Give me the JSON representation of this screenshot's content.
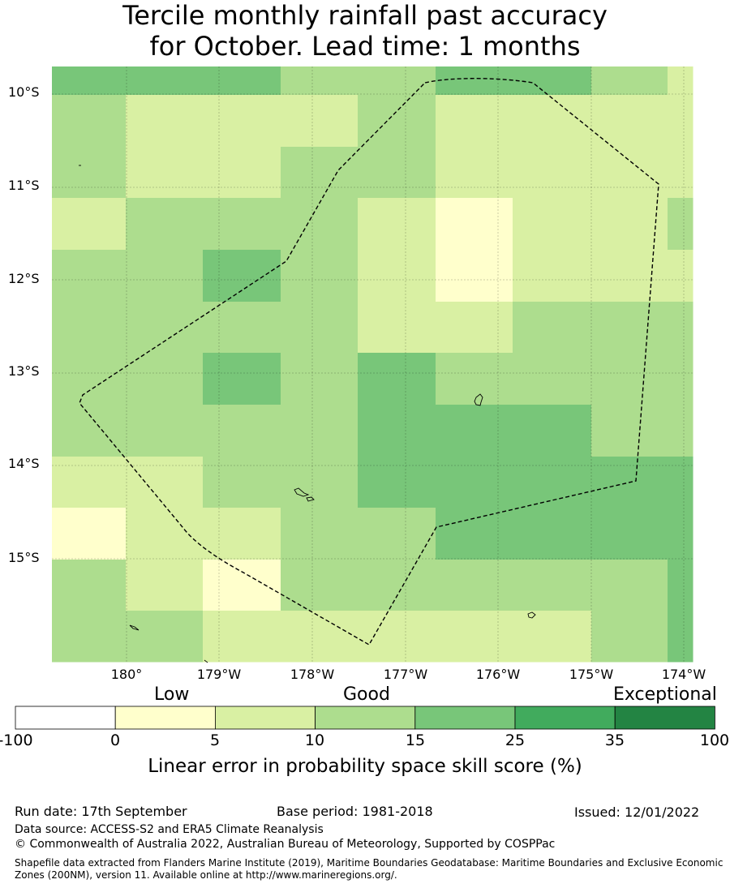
{
  "title": {
    "line1": "Tercile monthly rainfall past accuracy",
    "line2": "for October. Lead time: 1 months"
  },
  "map": {
    "lat_labels": [
      "10°S",
      "11°S",
      "12°S",
      "13°S",
      "14°S",
      "15°S"
    ],
    "lon_labels": [
      "180°",
      "179°W",
      "178°W",
      "177°W",
      "176°W",
      "175°W",
      "174°W"
    ],
    "lon_range": [
      -180.8,
      -173.9
    ],
    "lat_range": [
      -16.1,
      -9.7
    ],
    "grid": true,
    "boundary": "EEZ dashed outline",
    "cell_score_categories": [
      [
        "15-25",
        "15-25",
        "15-25",
        "10-15",
        "10-15",
        "15-25",
        "15-25",
        "10-15",
        "5-10"
      ],
      [
        "10-15",
        "5-10",
        "5-10",
        "5-10",
        "10-15",
        "5-10",
        "5-10",
        "5-10",
        "5-10"
      ],
      [
        "10-15",
        "5-10",
        "5-10",
        "10-15",
        "10-15",
        "5-10",
        "5-10",
        "5-10",
        "5-10"
      ],
      [
        "5-10",
        "10-15",
        "10-15",
        "10-15",
        "5-10",
        "0-5",
        "5-10",
        "5-10",
        "10-15"
      ],
      [
        "10-15",
        "10-15",
        "15-25",
        "10-15",
        "5-10",
        "0-5",
        "5-10",
        "5-10",
        "5-10"
      ],
      [
        "10-15",
        "10-15",
        "10-15",
        "10-15",
        "5-10",
        "5-10",
        "10-15",
        "10-15",
        "10-15"
      ],
      [
        "10-15",
        "10-15",
        "15-25",
        "10-15",
        "15-25",
        "10-15",
        "10-15",
        "10-15",
        "10-15"
      ],
      [
        "10-15",
        "10-15",
        "10-15",
        "10-15",
        "15-25",
        "15-25",
        "15-25",
        "10-15",
        "10-15"
      ],
      [
        "5-10",
        "5-10",
        "10-15",
        "10-15",
        "15-25",
        "15-25",
        "15-25",
        "15-25",
        "15-25"
      ],
      [
        "0-5",
        "5-10",
        "5-10",
        "10-15",
        "10-15",
        "15-25",
        "15-25",
        "15-25",
        "15-25"
      ],
      [
        "10-15",
        "5-10",
        "0-5",
        "10-15",
        "10-15",
        "10-15",
        "10-15",
        "10-15",
        "15-25"
      ],
      [
        "10-15",
        "10-15",
        "5-10",
        "5-10",
        "5-10",
        "5-10",
        "5-10",
        "10-15",
        "15-25"
      ]
    ]
  },
  "colorbar": {
    "categories": [
      "Low",
      "Good",
      "Exceptional"
    ],
    "ticks": [
      "-100",
      "0",
      "5",
      "10",
      "15",
      "25",
      "35",
      "100"
    ],
    "bins": [
      {
        "range": "-100-0",
        "color": "#ffffff"
      },
      {
        "range": "0-5",
        "color": "#ffffcc"
      },
      {
        "range": "5-10",
        "color": "#d9f0a3"
      },
      {
        "range": "10-15",
        "color": "#addd8e"
      },
      {
        "range": "15-25",
        "color": "#78c679"
      },
      {
        "range": "25-35",
        "color": "#41ab5d"
      },
      {
        "range": "35-100",
        "color": "#238443"
      }
    ],
    "title": "Linear error in probability space skill score (%)"
  },
  "footer": {
    "run_date": "Run date: 17th September",
    "base_period": "Base period: 1981-2018",
    "issued": "Issued: 12/01/2022",
    "data_source": "Data source: ACCESS-S2 and ERA5 Climate Reanalysis",
    "copyright": "© Commonwealth of Australia 2022, Australian Bureau of Meteorology, Supported by COSPPac",
    "shapefile": "Shapefile data extracted from Flanders Marine Institute (2019), Maritime Boundaries Geodatabase: Maritime Boundaries and Exclusive Economic Zones (200NM), version 11. Available online at http://www.marineregions.org/."
  }
}
